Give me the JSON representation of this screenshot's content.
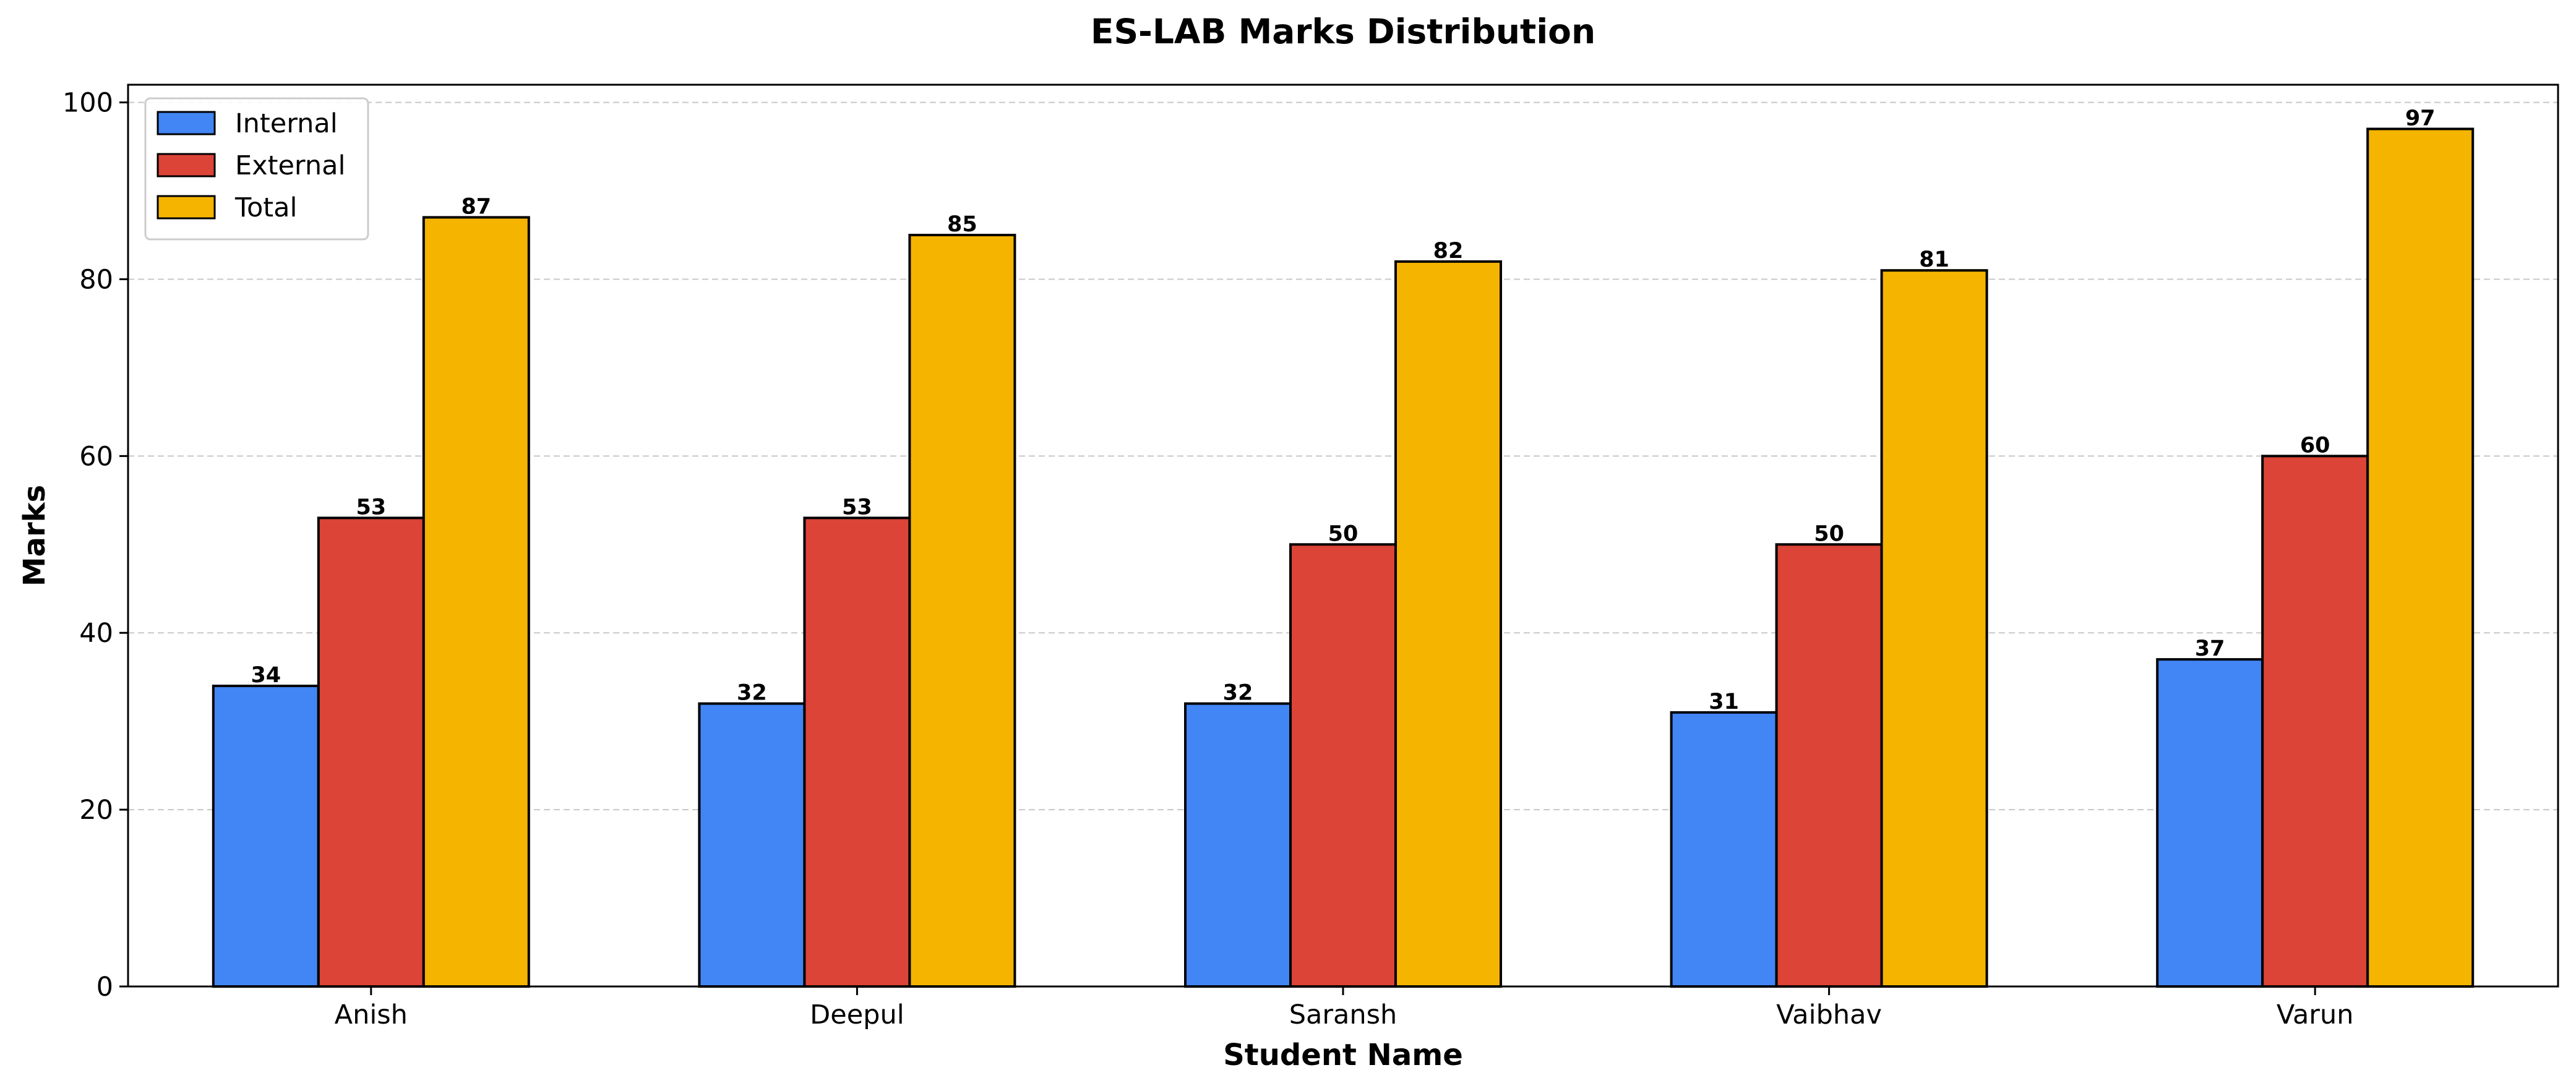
{
  "chart_data": {
    "type": "bar",
    "title": "ES-LAB Marks Distribution",
    "xlabel": "Student Name",
    "ylabel": "Marks",
    "categories": [
      "Anish",
      "Deepul",
      "Saransh",
      "Vaibhav",
      "Varun"
    ],
    "series": [
      {
        "name": "Internal",
        "color": "#4285f4",
        "values": [
          34,
          32,
          32,
          31,
          37
        ]
      },
      {
        "name": "External",
        "color": "#db4437",
        "values": [
          53,
          53,
          50,
          50,
          60
        ]
      },
      {
        "name": "Total",
        "color": "#f4b400",
        "values": [
          87,
          85,
          82,
          81,
          97
        ]
      }
    ],
    "ylim": [
      0,
      102
    ],
    "yticks": [
      "0",
      "20",
      "40",
      "60",
      "80",
      "100"
    ],
    "grid": "y-dashed",
    "legend_position": "top-left",
    "colors": {
      "edge": "#000000",
      "grid": "#c8c8c8"
    }
  }
}
